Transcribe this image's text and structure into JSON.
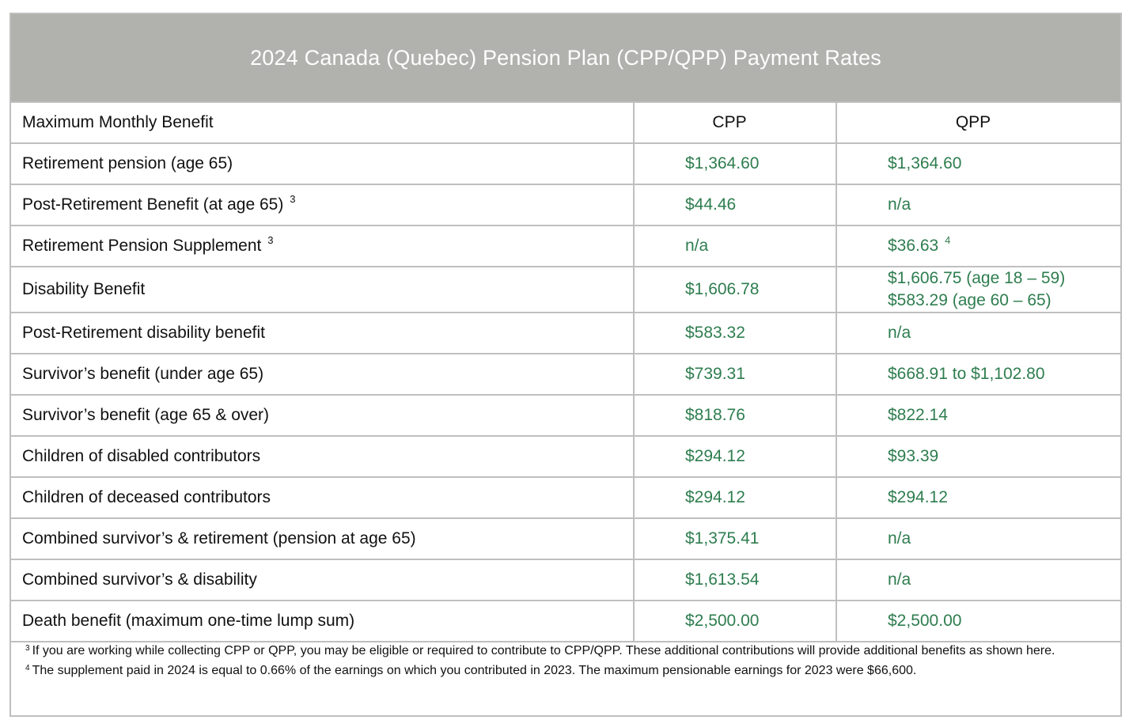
{
  "title": "2024 Canada (Quebec) Pension Plan (CPP/QPP) Payment Rates",
  "header": {
    "label": "Maximum Monthly Benefit",
    "cpp": "CPP",
    "qpp": "QPP"
  },
  "rows": [
    {
      "label": "Retirement pension (age 65)",
      "label_sup": "",
      "cpp": "$1,364.60",
      "qpp": "$1,364.60",
      "qpp_sup": "",
      "qpp_line2": ""
    },
    {
      "label": "Post-Retirement Benefit (at age 65)",
      "label_sup": "3",
      "cpp": "$44.46",
      "qpp": "n/a",
      "qpp_sup": "",
      "qpp_line2": ""
    },
    {
      "label": "Retirement Pension Supplement",
      "label_sup": "3",
      "cpp": "n/a",
      "qpp": "$36.63",
      "qpp_sup": "4",
      "qpp_line2": ""
    },
    {
      "label": "Disability Benefit",
      "label_sup": "",
      "cpp": "$1,606.78",
      "qpp": "$1,606.75 (age 18 – 59)",
      "qpp_sup": "",
      "qpp_line2": "$583.29 (age 60 – 65)"
    },
    {
      "label": "Post-Retirement disability benefit",
      "label_sup": "",
      "cpp": "$583.32",
      "qpp": "n/a",
      "qpp_sup": "",
      "qpp_line2": ""
    },
    {
      "label": "Survivor’s benefit (under age 65)",
      "label_sup": "",
      "cpp": "$739.31",
      "qpp": "$668.91 to $1,102.80",
      "qpp_sup": "",
      "qpp_line2": ""
    },
    {
      "label": "Survivor’s benefit (age 65 & over)",
      "label_sup": "",
      "cpp": "$818.76",
      "qpp": "$822.14",
      "qpp_sup": "",
      "qpp_line2": ""
    },
    {
      "label": "Children of disabled contributors",
      "label_sup": "",
      "cpp": "$294.12",
      "qpp": "$93.39",
      "qpp_sup": "",
      "qpp_line2": ""
    },
    {
      "label": "Children of deceased contributors",
      "label_sup": "",
      "cpp": "$294.12",
      "qpp": "$294.12",
      "qpp_sup": "",
      "qpp_line2": ""
    },
    {
      "label": "Combined survivor’s & retirement (pension at age 65)",
      "label_sup": "",
      "cpp": "$1,375.41",
      "qpp": "n/a",
      "qpp_sup": "",
      "qpp_line2": ""
    },
    {
      "label": "Combined survivor’s & disability",
      "label_sup": "",
      "cpp": "$1,613.54",
      "qpp": "n/a",
      "qpp_sup": "",
      "qpp_line2": ""
    },
    {
      "label": "Death benefit (maximum one-time lump sum)",
      "label_sup": "",
      "cpp": "$2,500.00",
      "qpp": "$2,500.00",
      "qpp_sup": "",
      "qpp_line2": ""
    }
  ],
  "footnotes": [
    {
      "marker": "3",
      "text": "If you are working while collecting CPP or QPP, you may be eligible or required to contribute to CPP/QPP.  These additional contributions will provide additional benefits as shown here."
    },
    {
      "marker": "4",
      "text": "The supplement paid in 2024 is equal to 0.66% of the earnings on which you contributed in 2023. The maximum pensionable earnings for 2023 were $66,600."
    }
  ],
  "colors": {
    "title_bar": "#b1b2ad",
    "value_green": "#2e7d4f",
    "border": "#bfbfbf"
  }
}
